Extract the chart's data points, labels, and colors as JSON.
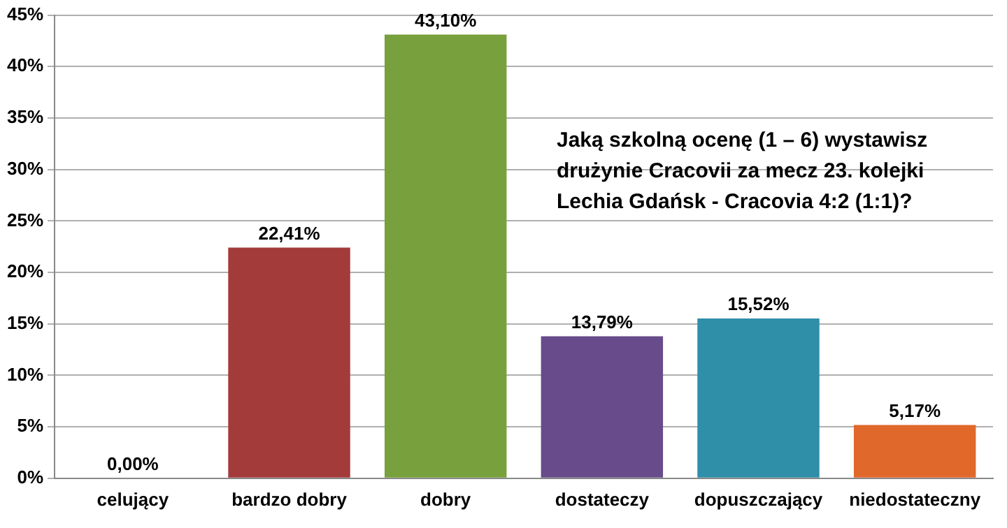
{
  "chart_data": {
    "type": "bar",
    "categories": [
      "celujący",
      "bardzo dobry",
      "dobry",
      "dostateczy",
      "dopuszczający",
      "niedostateczny"
    ],
    "values": [
      0,
      22.41,
      43.1,
      13.79,
      15.52,
      5.17
    ],
    "colors": [
      "#4f81bd",
      "#a33b3b",
      "#78a03c",
      "#674b8a",
      "#2f8ea8",
      "#e0682a"
    ],
    "value_labels": [
      "0,00%",
      "22,41%",
      "43,10%",
      "13,79%",
      "15,52%",
      "5,17%"
    ],
    "ylim": [
      0,
      45
    ],
    "yticks": [
      {
        "value": 0,
        "label": "0%"
      },
      {
        "value": 5,
        "label": "5%"
      },
      {
        "value": 10,
        "label": "10%"
      },
      {
        "value": 15,
        "label": "15%"
      },
      {
        "value": 20,
        "label": "20%"
      },
      {
        "value": 25,
        "label": "25%"
      },
      {
        "value": 30,
        "label": "30%"
      },
      {
        "value": 35,
        "label": "35%"
      },
      {
        "value": 40,
        "label": "40%"
      },
      {
        "value": 45,
        "label": "45%"
      }
    ],
    "grid": "y",
    "legend": false,
    "annotations": [
      "Jaką szkolną ocenę (1 – 6) wystawisz drużynie Cracovii za mecz 23. kolejki Lechia Gdańsk - Cracovia 4:2 (1:1)?"
    ]
  }
}
